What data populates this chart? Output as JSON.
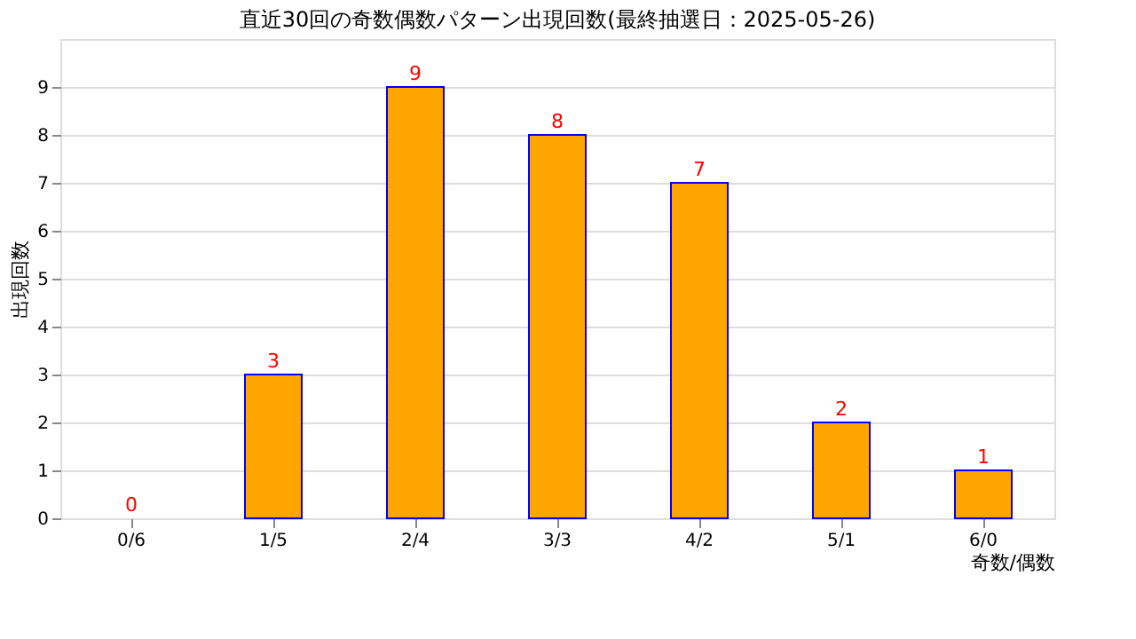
{
  "chart_data": {
    "type": "bar",
    "title": "直近30回の奇数偶数パターン出現回数(最終抽選日：2025-05-26)",
    "xlabel": "奇数/偶数",
    "ylabel": "出現回数",
    "categories": [
      "0/6",
      "1/5",
      "2/4",
      "3/3",
      "4/2",
      "5/1",
      "6/0"
    ],
    "values": [
      0,
      3,
      9,
      8,
      7,
      2,
      1
    ],
    "color": "#ffa500",
    "ylim": [
      0,
      10
    ],
    "yticks": [
      0,
      1,
      2,
      3,
      4,
      5,
      6,
      7,
      8,
      9
    ],
    "grid": "y",
    "data_labels": true
  }
}
